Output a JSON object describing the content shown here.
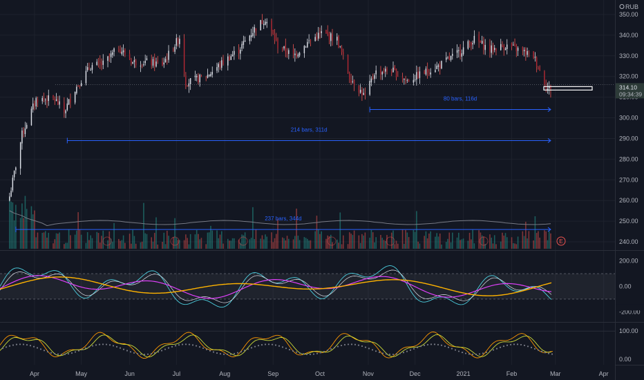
{
  "chart_data": {
    "type": "candlestick",
    "currency": "RUB",
    "price_axis_ticks": [
      "350.00",
      "340.00",
      "330.00",
      "320.00",
      "310.00",
      "300.00",
      "290.00",
      "280.00",
      "270.00",
      "260.00",
      "250.00",
      "240.00"
    ],
    "price_range": [
      236,
      357
    ],
    "last_price": "314.10",
    "countdown": "09:34:39",
    "time_axis_labels": [
      "Apr",
      "May",
      "Jun",
      "Jul",
      "Aug",
      "Sep",
      "Oct",
      "Nov",
      "Dec",
      "2021",
      "Feb",
      "Mar",
      "Apr"
    ],
    "price_path": [
      {
        "date": "2020-03-16",
        "value": 262
      },
      {
        "date": "2020-03-24",
        "value": 292
      },
      {
        "date": "2020-04-02",
        "value": 309
      },
      {
        "date": "2020-04-14",
        "value": 309
      },
      {
        "date": "2020-04-20",
        "value": 303
      },
      {
        "date": "2020-04-27",
        "value": 314
      },
      {
        "date": "2020-05-07",
        "value": 325
      },
      {
        "date": "2020-05-15",
        "value": 326
      },
      {
        "date": "2020-05-25",
        "value": 334
      },
      {
        "date": "2020-06-03",
        "value": 327
      },
      {
        "date": "2020-06-12",
        "value": 327
      },
      {
        "date": "2020-06-22",
        "value": 326
      },
      {
        "date": "2020-07-03",
        "value": 339
      },
      {
        "date": "2020-07-07",
        "value": 317
      },
      {
        "date": "2020-07-20",
        "value": 320
      },
      {
        "date": "2020-07-31",
        "value": 327
      },
      {
        "date": "2020-08-10",
        "value": 333
      },
      {
        "date": "2020-08-20",
        "value": 343
      },
      {
        "date": "2020-08-27",
        "value": 348
      },
      {
        "date": "2020-09-04",
        "value": 335
      },
      {
        "date": "2020-09-14",
        "value": 330
      },
      {
        "date": "2020-09-24",
        "value": 337
      },
      {
        "date": "2020-10-02",
        "value": 341
      },
      {
        "date": "2020-10-12",
        "value": 338
      },
      {
        "date": "2020-10-20",
        "value": 320
      },
      {
        "date": "2020-10-30",
        "value": 310
      },
      {
        "date": "2020-11-05",
        "value": 322
      },
      {
        "date": "2020-11-16",
        "value": 323
      },
      {
        "date": "2020-11-26",
        "value": 318
      },
      {
        "date": "2020-12-07",
        "value": 322
      },
      {
        "date": "2020-12-16",
        "value": 325
      },
      {
        "date": "2020-12-28",
        "value": 331
      },
      {
        "date": "2021-01-08",
        "value": 338
      },
      {
        "date": "2021-01-18",
        "value": 333
      },
      {
        "date": "2021-01-28",
        "value": 335
      },
      {
        "date": "2021-02-05",
        "value": 333
      },
      {
        "date": "2021-02-15",
        "value": 330
      },
      {
        "date": "2021-02-24",
        "value": 314
      }
    ],
    "measurements": [
      {
        "label": "80 bars, 116d",
        "from": "2020-11-02",
        "to": "2021-02-26",
        "price": 304
      },
      {
        "label": "214 bars, 311d",
        "from": "2020-04-22",
        "to": "2021-02-26",
        "price": 289
      },
      {
        "label": "237 bars, 344d",
        "from": "2020-03-20",
        "to": "2021-02-26",
        "price": 246
      }
    ],
    "indicator_1_ticks": [
      "200.00",
      "0.00",
      "-200.00"
    ],
    "indicator_1_range": [
      -280,
      280
    ],
    "indicator_2_ticks": [
      "100.00",
      "0.00"
    ],
    "indicator_2_range": [
      -20,
      130
    ],
    "event_markers": [
      "E"
    ],
    "colors": {
      "up": "#26a69a",
      "down": "#ef5350",
      "bg": "#131722",
      "grid": "#1e222d",
      "text": "#b2b5be",
      "blue": "#2962ff"
    }
  }
}
